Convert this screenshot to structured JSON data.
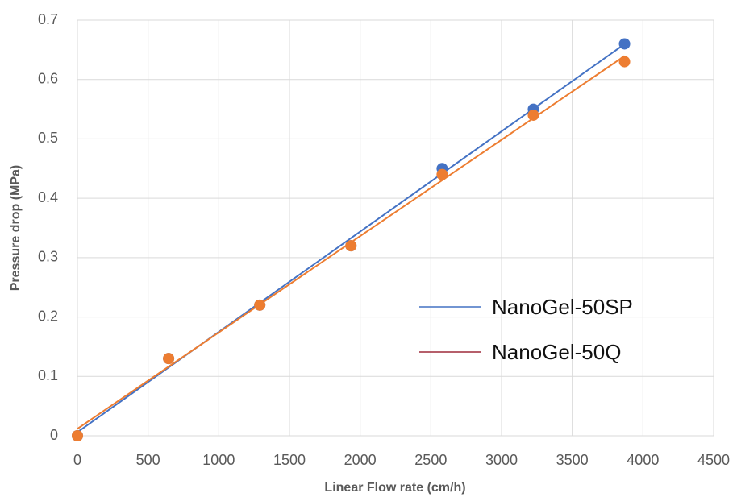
{
  "chart_data": {
    "type": "scatter",
    "xlabel": "Linear Flow rate (cm/h)",
    "ylabel": "Pressure drop (MPa)",
    "x": [
      0,
      645,
      1290,
      1935,
      2580,
      3225,
      3870
    ],
    "series": [
      {
        "name": "NanoGel-50SP",
        "color": "#4472c4",
        "legend_color": "#4472c4",
        "values": [
          0,
          0.13,
          0.22,
          0.32,
          0.45,
          0.55,
          0.66
        ]
      },
      {
        "name": "NanoGel-50Q",
        "color": "#ed7d31",
        "legend_color": "#9e2a3a",
        "values": [
          0,
          0.13,
          0.22,
          0.32,
          0.44,
          0.54,
          0.63
        ]
      }
    ],
    "trendline": "linear",
    "xlim": [
      0,
      4500
    ],
    "xticks": [
      0,
      500,
      1000,
      1500,
      2000,
      2500,
      3000,
      3500,
      4000,
      4500
    ],
    "ylim": [
      0,
      0.7
    ],
    "yticks": [
      0,
      0.1,
      0.2,
      0.3,
      0.4,
      0.5,
      0.6,
      0.7
    ],
    "grid": true
  }
}
